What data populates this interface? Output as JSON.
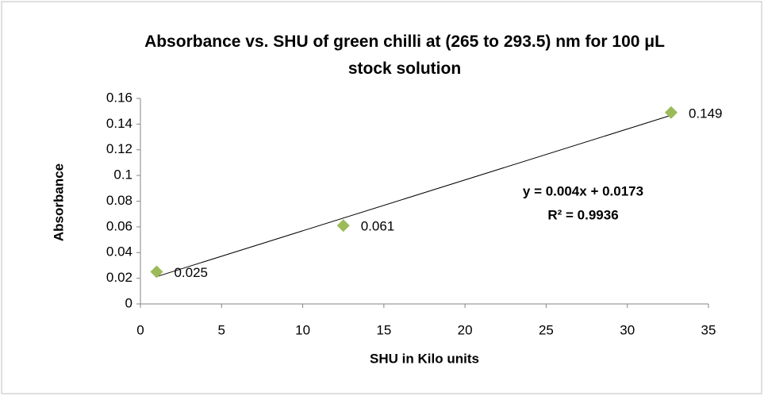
{
  "chart_data": {
    "type": "scatter",
    "title": "Absorbance vs. SHU of green chilli at (265 to 293.5) nm for 100 μL stock solution",
    "x_label": "SHU in Kilo units",
    "y_label": "Absorbance",
    "x": [
      1,
      12.5,
      32.7
    ],
    "values": [
      0.025,
      0.061,
      0.149
    ],
    "color": "#9bbb59",
    "xlim": [
      0,
      35
    ],
    "xticks": [
      0,
      5,
      10,
      15,
      20,
      25,
      30,
      35
    ],
    "ylim": [
      0,
      0.16
    ],
    "yticks": [
      0,
      0.02,
      0.04,
      0.06,
      0.08,
      0.1,
      0.12,
      0.14,
      0.16
    ],
    "grid": false,
    "trendline": "linear",
    "annotations": [
      "y = 0.004x + 0.0173",
      "R² = 0.9936"
    ]
  }
}
